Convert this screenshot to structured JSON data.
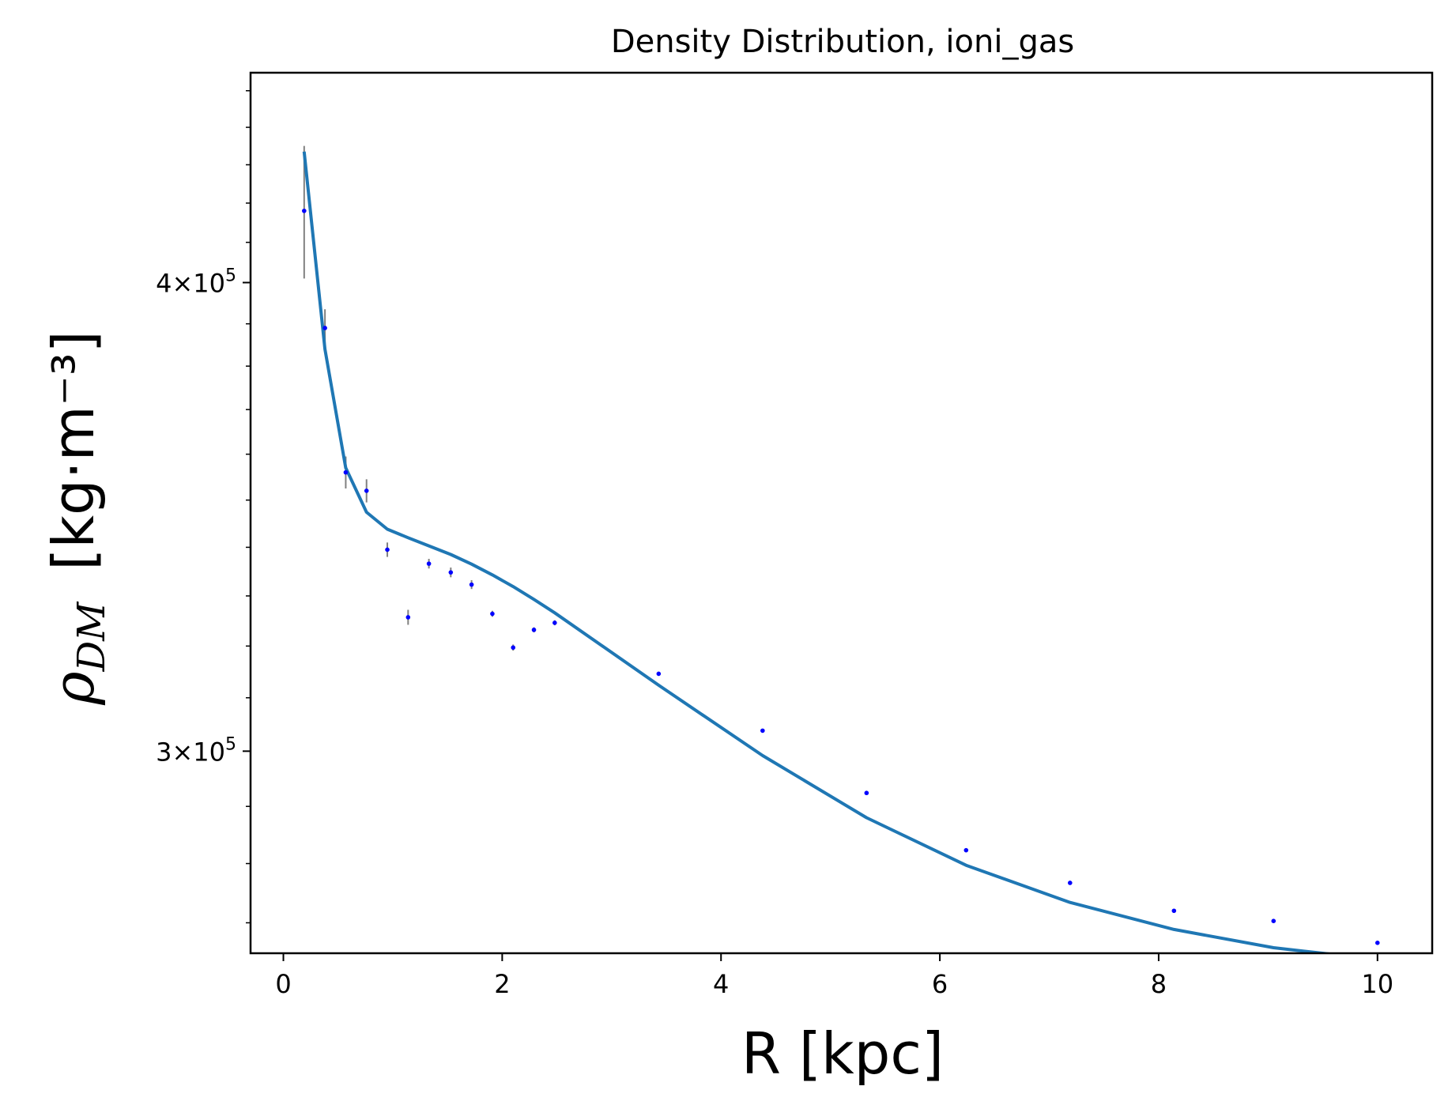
{
  "chart_data": {
    "type": "scatter",
    "title": "Density Distribution, ioni_gas",
    "xlabel": "R [kpc]",
    "ylabel": {
      "symbol": "ρ",
      "subscript": "DM",
      "unit": "[kg·m⁻³]"
    },
    "x_ticks": [
      "0",
      "2",
      "4",
      "6",
      "8",
      "10"
    ],
    "y_ticks": [
      {
        "value": 300000,
        "mantissa": "3",
        "times": "×",
        "base": "10",
        "exponent": "5"
      },
      {
        "value": 400000,
        "mantissa": "4",
        "times": "×",
        "base": "10",
        "exponent": "5"
      }
    ],
    "yscale": "log",
    "xlim": [
      -0.3,
      10.5
    ],
    "ylim": [
      265000,
      455000
    ],
    "colors": {
      "points": "#0000ff",
      "errorbars": "#808080",
      "fit_line": "#1f77b4"
    },
    "points": [
      {
        "x": 0.19,
        "y": 418000,
        "err": 17000
      },
      {
        "x": 0.38,
        "y": 389000,
        "err": 4500
      },
      {
        "x": 0.57,
        "y": 356000,
        "err": 3500
      },
      {
        "x": 0.76,
        "y": 352000,
        "err": 2500
      },
      {
        "x": 0.95,
        "y": 339500,
        "err": 1500
      },
      {
        "x": 1.14,
        "y": 325700,
        "err": 1500
      },
      {
        "x": 1.33,
        "y": 336600,
        "err": 1000
      },
      {
        "x": 1.53,
        "y": 334800,
        "err": 1000
      },
      {
        "x": 1.72,
        "y": 332300,
        "err": 900
      },
      {
        "x": 1.91,
        "y": 326400,
        "err": 600
      },
      {
        "x": 2.1,
        "y": 319700,
        "err": 600
      },
      {
        "x": 2.29,
        "y": 323200,
        "err": 500
      },
      {
        "x": 2.48,
        "y": 324600,
        "err": 500
      },
      {
        "x": 3.43,
        "y": 314600,
        "err": 400
      },
      {
        "x": 4.38,
        "y": 303800,
        "err": 300
      },
      {
        "x": 5.33,
        "y": 292400,
        "err": 200
      },
      {
        "x": 6.24,
        "y": 282300,
        "err": 200
      },
      {
        "x": 7.19,
        "y": 276700,
        "err": 200
      },
      {
        "x": 8.14,
        "y": 272000,
        "err": 150
      },
      {
        "x": 9.05,
        "y": 270300,
        "err": 150
      },
      {
        "x": 10.0,
        "y": 266700,
        "err": 150
      }
    ],
    "fit_line": {
      "x": [
        0.19,
        0.38,
        0.57,
        0.76,
        0.95,
        1.14,
        1.33,
        1.53,
        1.72,
        1.91,
        2.1,
        2.29,
        2.48,
        3.43,
        4.38,
        5.33,
        6.24,
        7.19,
        8.14,
        9.05,
        10.0
      ],
      "y": [
        433500,
        384000,
        357000,
        347400,
        343800,
        342000,
        340300,
        338500,
        336500,
        334300,
        331900,
        329300,
        326600,
        312400,
        299200,
        288000,
        279700,
        273400,
        268900,
        265900,
        264000
      ]
    }
  }
}
